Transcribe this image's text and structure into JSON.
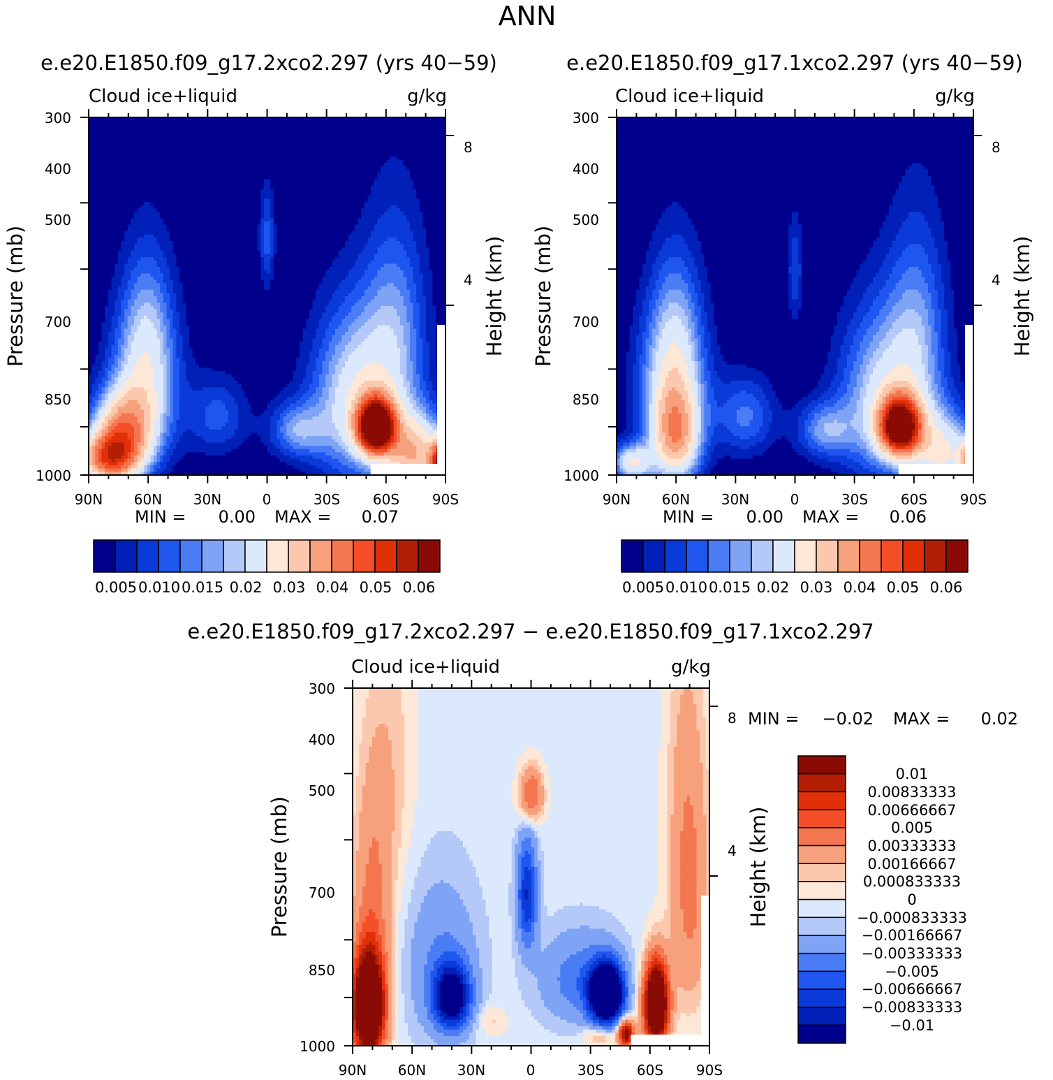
{
  "page": {
    "title": "ANN"
  },
  "colors": {
    "top_scale": [
      "#00008c",
      "#0020b8",
      "#0a3ad8",
      "#1f56f0",
      "#4a7cf5",
      "#7fa3f5",
      "#b4c9f8",
      "#dce8fb",
      "#fde7d6",
      "#fbc8ae",
      "#f7a07c",
      "#f47750",
      "#f34e27",
      "#e0300a",
      "#b21f05",
      "#8a0b05"
    ],
    "diff_scale": [
      "#8a0b05",
      "#b21f05",
      "#e0300a",
      "#f34e27",
      "#f47750",
      "#f7a07c",
      "#fbc8ae",
      "#fde7d6",
      "#dce8fb",
      "#b4c9f8",
      "#7fa3f5",
      "#4a7cf5",
      "#1f56f0",
      "#0a3ad8",
      "#0020b8",
      "#00008c"
    ]
  },
  "chart_data": [
    {
      "type": "heatmap",
      "title": "e.e20.E1850.f09_g17.2xco2.297 (yrs 40−59)",
      "left_label": "Cloud ice+liquid",
      "right_label": "g/kg",
      "ylabel": "Pressure (mb)",
      "y2label": "Height (km)",
      "x_ticks": [
        "90N",
        "60N",
        "30N",
        "0",
        "30S",
        "60S",
        "90S"
      ],
      "y_ticks": [
        "300",
        "400",
        "500",
        "700",
        "850",
        "1000"
      ],
      "y2_ticks": [
        "8",
        "4"
      ],
      "min_label": "MIN =",
      "min_value": "0.00",
      "max_label": "MAX =",
      "max_value": "0.07",
      "colorbar_labels": [
        "0.005",
        "0.010",
        "0.015",
        "0.02",
        "0.03",
        "0.04",
        "0.05",
        "0.06"
      ],
      "field": {
        "background": 0.002,
        "blobs": [
          {
            "lat": -55,
            "p": 850,
            "slat": 9,
            "sp": 75,
            "amp": 0.07
          },
          {
            "lat": -75,
            "p": 940,
            "slat": 15,
            "sp": 130,
            "amp": 0.03
          },
          {
            "lat": -45,
            "p": 780,
            "slat": 22,
            "sp": 220,
            "amp": 0.022
          },
          {
            "lat": -65,
            "p": 620,
            "slat": 16,
            "sp": 230,
            "amp": 0.012
          },
          {
            "lat": -88,
            "p": 960,
            "slat": 5,
            "sp": 70,
            "amp": 0.05
          },
          {
            "lat": 80,
            "p": 950,
            "slat": 15,
            "sp": 80,
            "amp": 0.038
          },
          {
            "lat": 73,
            "p": 860,
            "slat": 15,
            "sp": 110,
            "amp": 0.03
          },
          {
            "lat": 62,
            "p": 740,
            "slat": 17,
            "sp": 200,
            "amp": 0.018
          },
          {
            "lat": 60,
            "p": 600,
            "slat": 13,
            "sp": 170,
            "amp": 0.008
          },
          {
            "lat": 0,
            "p": 450,
            "slat": 4,
            "sp": 80,
            "amp": 0.009
          },
          {
            "lat": -15,
            "p": 860,
            "slat": 14,
            "sp": 80,
            "amp": 0.013
          },
          {
            "lat": 25,
            "p": 820,
            "slat": 15,
            "sp": 110,
            "amp": 0.009
          }
        ]
      }
    },
    {
      "type": "heatmap",
      "title": "e.e20.E1850.f09_g17.1xco2.297 (yrs 40−59)",
      "left_label": "Cloud ice+liquid",
      "right_label": "g/kg",
      "ylabel": "Pressure (mb)",
      "y2label": "Height (km)",
      "x_ticks": [
        "90N",
        "60N",
        "30N",
        "0",
        "30S",
        "60S",
        "90S"
      ],
      "y_ticks": [
        "300",
        "400",
        "500",
        "700",
        "850",
        "1000"
      ],
      "y2_ticks": [
        "8",
        "4"
      ],
      "min_label": "MIN =",
      "min_value": "0.00",
      "max_label": "MAX =",
      "max_value": "0.06",
      "colorbar_labels": [
        "0.005",
        "0.010",
        "0.015",
        "0.02",
        "0.03",
        "0.04",
        "0.05",
        "0.06"
      ],
      "field": {
        "background": 0.002,
        "blobs": [
          {
            "lat": -53,
            "p": 850,
            "slat": 10,
            "sp": 80,
            "amp": 0.06
          },
          {
            "lat": -75,
            "p": 930,
            "slat": 15,
            "sp": 130,
            "amp": 0.022
          },
          {
            "lat": -45,
            "p": 780,
            "slat": 22,
            "sp": 220,
            "amp": 0.02
          },
          {
            "lat": -62,
            "p": 620,
            "slat": 15,
            "sp": 230,
            "amp": 0.011
          },
          {
            "lat": -88,
            "p": 960,
            "slat": 5,
            "sp": 70,
            "amp": 0.03
          },
          {
            "lat": 60,
            "p": 880,
            "slat": 12,
            "sp": 140,
            "amp": 0.028
          },
          {
            "lat": 82,
            "p": 960,
            "slat": 10,
            "sp": 60,
            "amp": 0.022
          },
          {
            "lat": 62,
            "p": 740,
            "slat": 17,
            "sp": 200,
            "amp": 0.018
          },
          {
            "lat": 60,
            "p": 600,
            "slat": 13,
            "sp": 170,
            "amp": 0.008
          },
          {
            "lat": 0,
            "p": 500,
            "slat": 4,
            "sp": 90,
            "amp": 0.008
          },
          {
            "lat": -15,
            "p": 860,
            "slat": 14,
            "sp": 80,
            "amp": 0.013
          },
          {
            "lat": 25,
            "p": 820,
            "slat": 15,
            "sp": 110,
            "amp": 0.011
          }
        ]
      }
    },
    {
      "type": "heatmap",
      "title": "e.e20.E1850.f09_g17.2xco2.297 − e.e20.E1850.f09_g17.1xco2.297",
      "left_label": "Cloud ice+liquid",
      "right_label": "g/kg",
      "ylabel": "Pressure (mb)",
      "y2label": "Height (km)",
      "x_ticks": [
        "90N",
        "60N",
        "30N",
        "0",
        "30S",
        "60S",
        "90S"
      ],
      "y_ticks": [
        "300",
        "400",
        "500",
        "700",
        "850",
        "1000"
      ],
      "y2_ticks": [
        "8",
        "4"
      ],
      "min_label": "MIN =",
      "min_value": "−0.02",
      "max_label": "MAX =",
      "max_value": "0.02",
      "colorbar_labels": [
        "0.01",
        "0.00833333",
        "0.00666667",
        "0.005",
        "0.00333333",
        "0.00166667",
        "0.000833333",
        "0",
        "−0.000833333",
        "−0.00166667",
        "−0.00333333",
        "−0.005",
        "−0.00666667",
        "−0.00833333",
        "−0.01"
      ],
      "field": {
        "background": -0.0004,
        "blobs": [
          {
            "lat": 82,
            "p": 880,
            "slat": 8,
            "sp": 150,
            "amp": 0.02
          },
          {
            "lat": 80,
            "p": 620,
            "slat": 10,
            "sp": 250,
            "amp": 0.004
          },
          {
            "lat": 70,
            "p": 380,
            "slat": 12,
            "sp": 200,
            "amp": 0.0015
          },
          {
            "lat": -63,
            "p": 870,
            "slat": 6,
            "sp": 120,
            "amp": 0.02
          },
          {
            "lat": -80,
            "p": 620,
            "slat": 10,
            "sp": 260,
            "amp": 0.004
          },
          {
            "lat": -78,
            "p": 380,
            "slat": 10,
            "sp": 200,
            "amp": 0.0015
          },
          {
            "lat": 40,
            "p": 850,
            "slat": 9,
            "sp": 90,
            "amp": -0.012
          },
          {
            "lat": 45,
            "p": 760,
            "slat": 18,
            "sp": 200,
            "amp": -0.003
          },
          {
            "lat": -38,
            "p": 840,
            "slat": 8,
            "sp": 80,
            "amp": -0.02
          },
          {
            "lat": -25,
            "p": 800,
            "slat": 20,
            "sp": 120,
            "amp": -0.004
          },
          {
            "lat": 2,
            "p": 600,
            "slat": 5,
            "sp": 110,
            "amp": -0.008
          },
          {
            "lat": 0,
            "p": 430,
            "slat": 6,
            "sp": 40,
            "amp": 0.006
          },
          {
            "lat": -48,
            "p": 960,
            "slat": 4,
            "sp": 45,
            "amp": 0.012
          },
          {
            "lat": -35,
            "p": 970,
            "slat": 8,
            "sp": 35,
            "amp": 0.003
          },
          {
            "lat": 20,
            "p": 920,
            "slat": 8,
            "sp": 50,
            "amp": 0.0015
          }
        ]
      }
    }
  ]
}
